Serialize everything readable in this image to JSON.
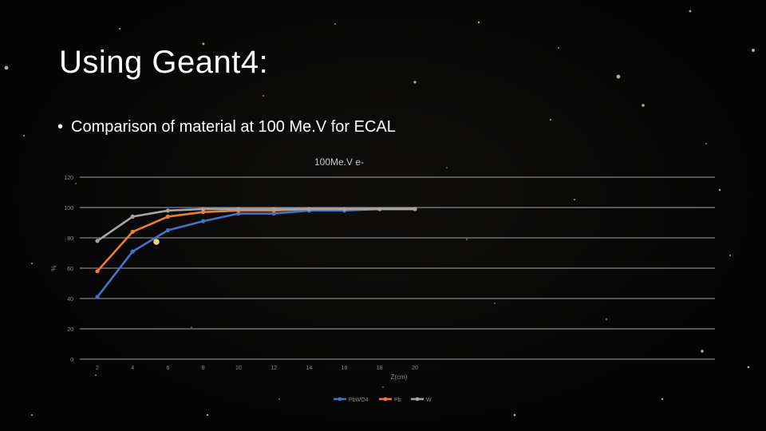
{
  "slide": {
    "title": "Using Geant4:",
    "bullets": [
      {
        "bullet_char": "•",
        "text": "Comparison of material at 100 Me.V for ECAL"
      }
    ]
  },
  "colors": {
    "background": "#050505",
    "text": "#ffffff",
    "axis_text": "#8c8c8c",
    "gridline": "#d9d9d9"
  },
  "chart_data": {
    "type": "line",
    "title": "100Me.V e-",
    "xlabel": "Z(cm)",
    "ylabel": "%",
    "x": [
      2,
      4,
      6,
      8,
      10,
      12,
      14,
      16,
      18,
      20
    ],
    "x_ticks": [
      "2",
      "4",
      "6",
      "8",
      "10",
      "12",
      "14",
      "16",
      "18",
      "20"
    ],
    "ylim": [
      0,
      120
    ],
    "y_ticks": [
      "0",
      "20",
      "40",
      "60",
      "80",
      "100",
      "120"
    ],
    "grid": true,
    "legend_position": "bottom",
    "series": [
      {
        "name": "PbWO4",
        "color": "#4472c4",
        "values": [
          41,
          71,
          85,
          91,
          96,
          96,
          98,
          98,
          99,
          99
        ]
      },
      {
        "name": "Pb",
        "color": "#ed7d31",
        "values": [
          58,
          84,
          94,
          97,
          98,
          98,
          99,
          99,
          99,
          99
        ]
      },
      {
        "name": "W",
        "color": "#a5a5a5",
        "values": [
          78,
          94,
          98,
          99,
          99,
          99,
          99,
          99,
          99,
          99
        ]
      }
    ]
  }
}
